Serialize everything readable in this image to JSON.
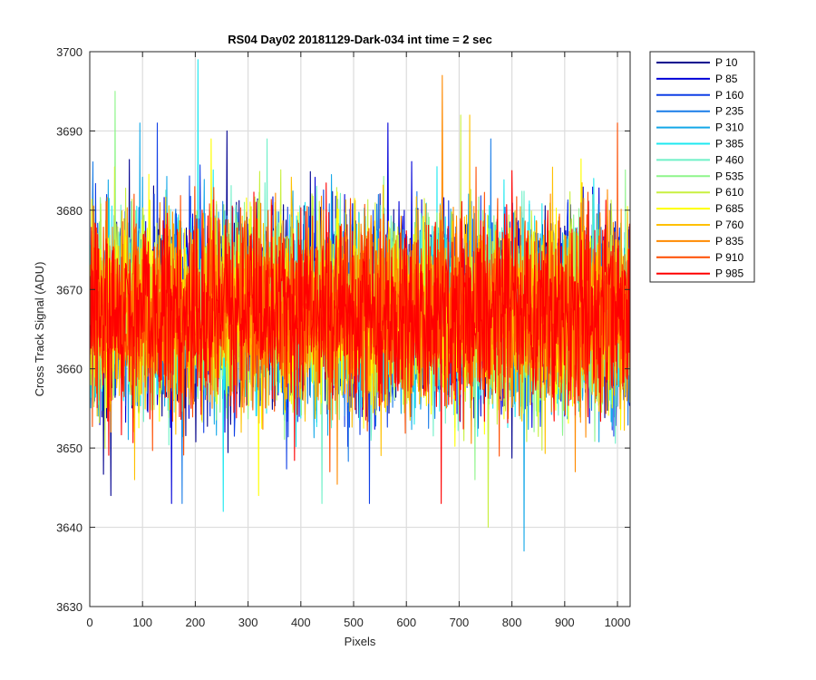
{
  "chart_data": {
    "type": "line",
    "title": "RS04 Day02 20181129-Dark-034 int time = 2 sec",
    "xlabel": "Pixels",
    "ylabel": "Cross Track Signal (ADU)",
    "xlim": [
      0,
      1024
    ],
    "ylim": [
      3630,
      3700
    ],
    "xticks": [
      "0",
      "100",
      "200",
      "300",
      "400",
      "500",
      "600",
      "700",
      "800",
      "900",
      "1000"
    ],
    "yticks": [
      "3630",
      "3640",
      "3650",
      "3660",
      "3670",
      "3680",
      "3690",
      "3700"
    ],
    "grid": true,
    "legend_position": "outside-top-right",
    "noise_summary": {
      "mean": 3667,
      "spread_sd": 6,
      "min": 3637,
      "max": 3699,
      "pixel_count": 1024
    },
    "series": [
      {
        "name": "P 10",
        "color": "#00008f",
        "peak": [
          260,
          3690
        ],
        "trough": [
          40,
          3644
        ]
      },
      {
        "name": "P 85",
        "color": "#0000d8",
        "peak": [
          565,
          3691
        ],
        "trough": [
          155,
          3643
        ]
      },
      {
        "name": "P 160",
        "color": "#0f3fe6",
        "peak": [
          128,
          3691
        ],
        "trough": [
          530,
          3643
        ]
      },
      {
        "name": "P 235",
        "color": "#1a7de8",
        "peak": [
          760,
          3689
        ],
        "trough": [
          175,
          3643
        ]
      },
      {
        "name": "P 310",
        "color": "#14a8e8",
        "peak": [
          95,
          3691
        ],
        "trough": [
          823,
          3637
        ]
      },
      {
        "name": "P 385",
        "color": "#1ee8f0",
        "peak": [
          205,
          3699
        ],
        "trough": [
          253,
          3642
        ]
      },
      {
        "name": "P 460",
        "color": "#6ff0c8",
        "peak": [
          336,
          3689
        ],
        "trough": [
          440,
          3643
        ]
      },
      {
        "name": "P 535",
        "color": "#8ef58a",
        "peak": [
          48,
          3695
        ],
        "trough": [
          730,
          3646
        ]
      },
      {
        "name": "P 610",
        "color": "#c8f040",
        "peak": [
          703,
          3692
        ],
        "trough": [
          755,
          3640
        ]
      },
      {
        "name": "P 685",
        "color": "#ffff00",
        "peak": [
          230,
          3689
        ],
        "trough": [
          320,
          3644
        ]
      },
      {
        "name": "P 760",
        "color": "#ffc000",
        "peak": [
          720,
          3692
        ],
        "trough": [
          85,
          3646
        ]
      },
      {
        "name": "P 835",
        "color": "#ff8a00",
        "peak": [
          668,
          3697
        ],
        "trough": [
          920,
          3647
        ]
      },
      {
        "name": "P 910",
        "color": "#ff4d00",
        "peak": [
          1000,
          3691
        ],
        "trough": [
          455,
          3647
        ]
      },
      {
        "name": "P 985",
        "color": "#ff0000",
        "peak": [
          800,
          3685
        ],
        "trough": [
          666,
          3643
        ]
      }
    ]
  }
}
